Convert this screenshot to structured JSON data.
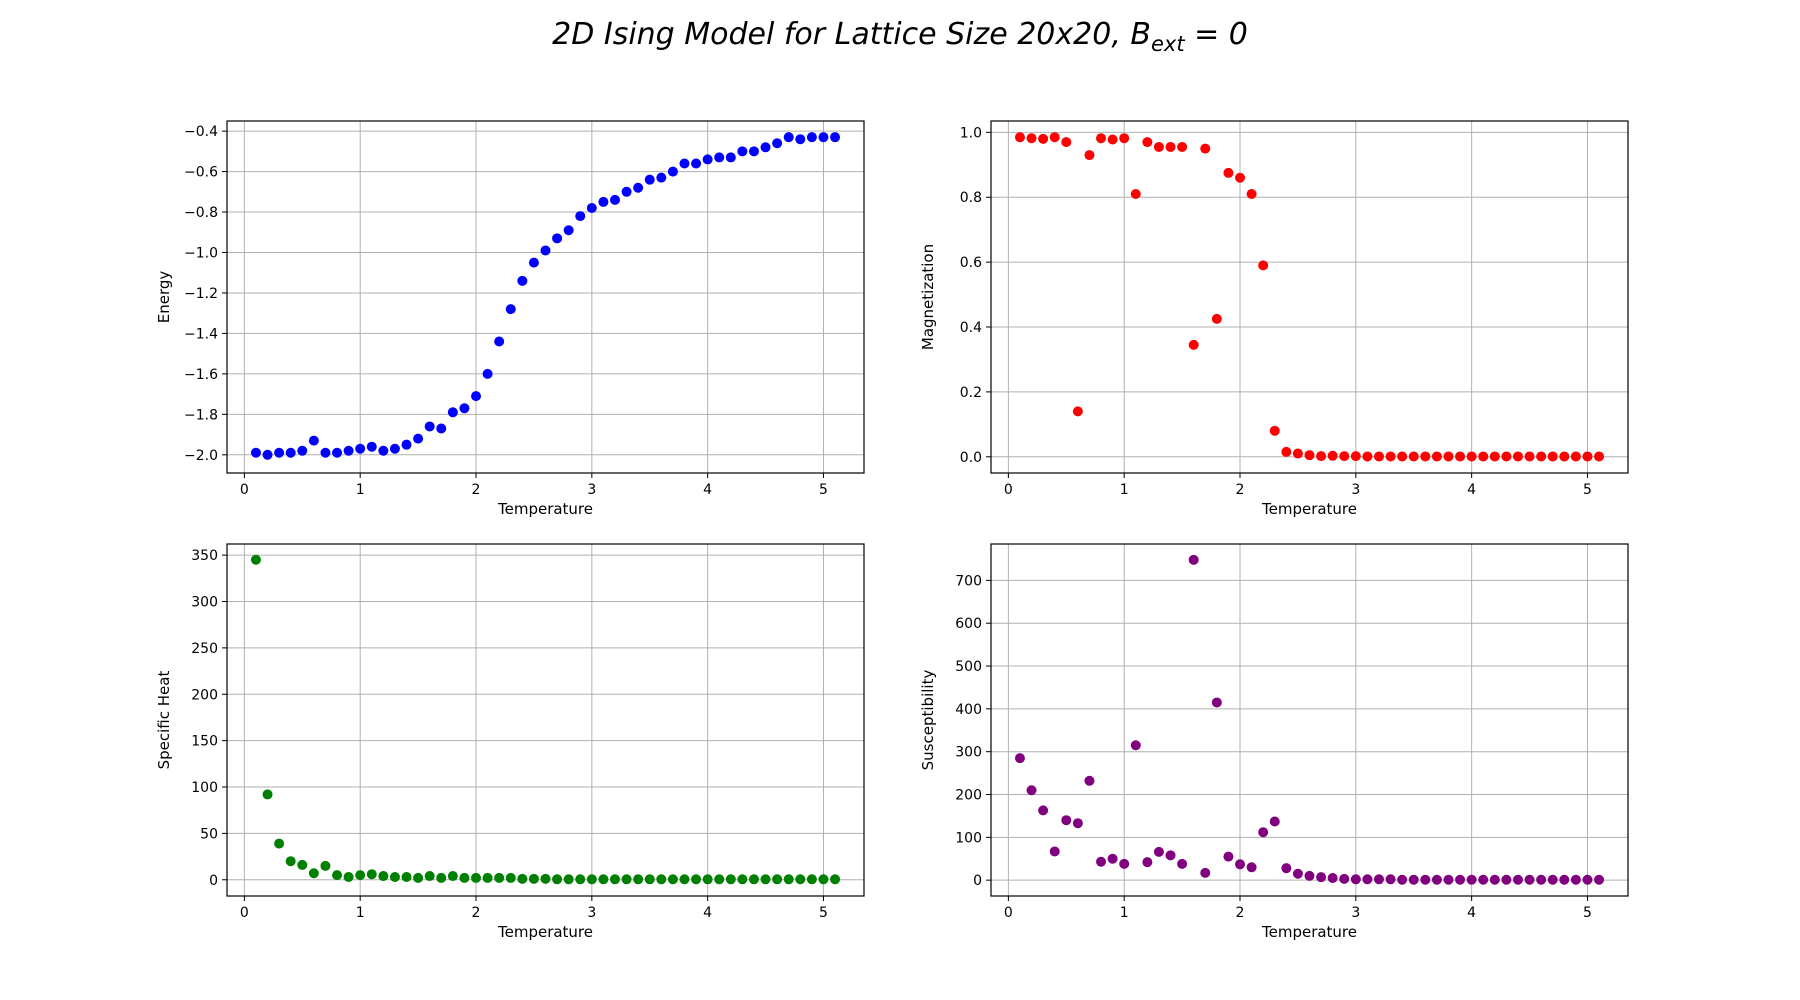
{
  "figure": {
    "title": "2D Ising Model for Lattice Size 20x20, ",
    "title_b": "B",
    "title_sub": "ext",
    "title_tail": "  =  0"
  },
  "chart_data": [
    {
      "id": "energy",
      "type": "scatter",
      "xlabel": "Temperature",
      "ylabel": "Energy",
      "xlim": [
        -0.15,
        5.35
      ],
      "ylim": [
        -2.09,
        -0.35
      ],
      "xticks": [
        0,
        1,
        2,
        3,
        4,
        5
      ],
      "xtick_labels": [
        "0",
        "1",
        "2",
        "3",
        "4",
        "5"
      ],
      "yticks": [
        -2.0,
        -1.8,
        -1.6,
        -1.4,
        -1.2,
        -1.0,
        -0.8,
        -0.6,
        -0.4
      ],
      "ytick_labels": [
        "−2.0",
        "−1.8",
        "−1.6",
        "−1.4",
        "−1.2",
        "−1.0",
        "−0.8",
        "−0.6",
        "−0.4"
      ],
      "grid": true,
      "color": "#0000ff",
      "x": [
        0.1,
        0.2,
        0.3,
        0.4,
        0.5,
        0.6,
        0.7,
        0.8,
        0.9,
        1.0,
        1.1,
        1.2,
        1.3,
        1.4,
        1.5,
        1.6,
        1.7,
        1.8,
        1.9,
        2.0,
        2.1,
        2.2,
        2.3,
        2.4,
        2.5,
        2.6,
        2.7,
        2.8,
        2.9,
        3.0,
        3.1,
        3.2,
        3.3,
        3.4,
        3.5,
        3.6,
        3.7,
        3.8,
        3.9,
        4.0,
        4.1,
        4.2,
        4.3,
        4.4,
        4.5,
        4.6,
        4.7,
        4.8,
        4.9,
        5.0,
        5.1
      ],
      "y": [
        -1.99,
        -2.0,
        -1.99,
        -1.99,
        -1.98,
        -1.93,
        -1.99,
        -1.99,
        -1.98,
        -1.97,
        -1.96,
        -1.98,
        -1.97,
        -1.95,
        -1.92,
        -1.86,
        -1.87,
        -1.79,
        -1.77,
        -1.71,
        -1.6,
        -1.44,
        -1.28,
        -1.14,
        -1.05,
        -0.99,
        -0.93,
        -0.89,
        -0.82,
        -0.78,
        -0.75,
        -0.74,
        -0.7,
        -0.68,
        -0.64,
        -0.63,
        -0.6,
        -0.56,
        -0.56,
        -0.54,
        -0.53,
        -0.53,
        -0.5,
        -0.5,
        -0.48,
        -0.46,
        -0.43,
        -0.44,
        -0.43,
        -0.43,
        -0.43
      ]
    },
    {
      "id": "magnetization",
      "type": "scatter",
      "xlabel": "Temperature",
      "ylabel": "Magnetization",
      "xlim": [
        -0.15,
        5.35
      ],
      "ylim": [
        -0.05,
        1.035
      ],
      "xticks": [
        0,
        1,
        2,
        3,
        4,
        5
      ],
      "xtick_labels": [
        "0",
        "1",
        "2",
        "3",
        "4",
        "5"
      ],
      "yticks": [
        0.0,
        0.2,
        0.4,
        0.6,
        0.8,
        1.0
      ],
      "ytick_labels": [
        "0.0",
        "0.2",
        "0.4",
        "0.6",
        "0.8",
        "1.0"
      ],
      "grid": true,
      "color": "#ff0000",
      "x": [
        0.1,
        0.2,
        0.3,
        0.4,
        0.5,
        0.6,
        0.7,
        0.8,
        0.9,
        1.0,
        1.1,
        1.2,
        1.3,
        1.4,
        1.5,
        1.6,
        1.7,
        1.8,
        1.9,
        2.0,
        2.1,
        2.2,
        2.3,
        2.4,
        2.5,
        2.6,
        2.7,
        2.8,
        2.9,
        3.0,
        3.1,
        3.2,
        3.3,
        3.4,
        3.5,
        3.6,
        3.7,
        3.8,
        3.9,
        4.0,
        4.1,
        4.2,
        4.3,
        4.4,
        4.5,
        4.6,
        4.7,
        4.8,
        4.9,
        5.0,
        5.1
      ],
      "y": [
        0.985,
        0.982,
        0.98,
        0.985,
        0.97,
        0.14,
        0.93,
        0.982,
        0.978,
        0.982,
        0.81,
        0.97,
        0.955,
        0.955,
        0.955,
        0.345,
        0.95,
        0.425,
        0.875,
        0.86,
        0.81,
        0.59,
        0.08,
        0.015,
        0.01,
        0.005,
        0.002,
        0.003,
        0.002,
        0.002,
        0.001,
        0.001,
        0.001,
        0.001,
        0.001,
        0.001,
        0.001,
        0.001,
        0.001,
        0.001,
        0.001,
        0.001,
        0.001,
        0.001,
        0.001,
        0.001,
        0.001,
        0.001,
        0.001,
        0.001,
        0.001
      ]
    },
    {
      "id": "specific-heat",
      "type": "scatter",
      "xlabel": "Temperature",
      "ylabel": "Specific Heat",
      "xlim": [
        -0.15,
        5.35
      ],
      "ylim": [
        -17.5,
        362
      ],
      "xticks": [
        0,
        1,
        2,
        3,
        4,
        5
      ],
      "xtick_labels": [
        "0",
        "1",
        "2",
        "3",
        "4",
        "5"
      ],
      "yticks": [
        0,
        50,
        100,
        150,
        200,
        250,
        300,
        350
      ],
      "ytick_labels": [
        "0",
        "50",
        "100",
        "150",
        "200",
        "250",
        "300",
        "350"
      ],
      "grid": true,
      "color": "#008000",
      "x": [
        0.1,
        0.2,
        0.3,
        0.4,
        0.5,
        0.6,
        0.7,
        0.8,
        0.9,
        1.0,
        1.1,
        1.2,
        1.3,
        1.4,
        1.5,
        1.6,
        1.7,
        1.8,
        1.9,
        2.0,
        2.1,
        2.2,
        2.3,
        2.4,
        2.5,
        2.6,
        2.7,
        2.8,
        2.9,
        3.0,
        3.1,
        3.2,
        3.3,
        3.4,
        3.5,
        3.6,
        3.7,
        3.8,
        3.9,
        4.0,
        4.1,
        4.2,
        4.3,
        4.4,
        4.5,
        4.6,
        4.7,
        4.8,
        4.9,
        5.0,
        5.1
      ],
      "y": [
        345,
        92,
        39,
        20,
        16,
        7,
        15,
        5,
        3,
        5,
        6,
        4,
        3,
        3,
        2,
        4,
        2,
        4,
        2,
        2,
        2,
        2,
        2,
        1,
        1,
        1,
        0.5,
        0.5,
        0.5,
        0.5,
        0.5,
        0.5,
        0.5,
        0.5,
        0.5,
        0.5,
        0.5,
        0.5,
        0.5,
        0.5,
        0.5,
        0.5,
        0.5,
        0.5,
        0.5,
        0.5,
        0.5,
        0.5,
        0.5,
        0.5,
        0.5
      ]
    },
    {
      "id": "susceptibility",
      "type": "scatter",
      "xlabel": "Temperature",
      "ylabel": "Susceptibility",
      "xlim": [
        -0.15,
        5.35
      ],
      "ylim": [
        -37,
        785
      ],
      "xticks": [
        0,
        1,
        2,
        3,
        4,
        5
      ],
      "xtick_labels": [
        "0",
        "1",
        "2",
        "3",
        "4",
        "5"
      ],
      "yticks": [
        0,
        100,
        200,
        300,
        400,
        500,
        600,
        700
      ],
      "ytick_labels": [
        "0",
        "100",
        "200",
        "300",
        "400",
        "500",
        "600",
        "700"
      ],
      "grid": true,
      "color": "#800080",
      "x": [
        0.1,
        0.2,
        0.3,
        0.4,
        0.5,
        0.6,
        0.7,
        0.8,
        0.9,
        1.0,
        1.1,
        1.2,
        1.3,
        1.4,
        1.5,
        1.6,
        1.7,
        1.8,
        1.9,
        2.0,
        2.1,
        2.2,
        2.3,
        2.4,
        2.5,
        2.6,
        2.7,
        2.8,
        2.9,
        3.0,
        3.1,
        3.2,
        3.3,
        3.4,
        3.5,
        3.6,
        3.7,
        3.8,
        3.9,
        4.0,
        4.1,
        4.2,
        4.3,
        4.4,
        4.5,
        4.6,
        4.7,
        4.8,
        4.9,
        5.0,
        5.1
      ],
      "y": [
        285,
        210,
        163,
        67,
        140,
        133,
        232,
        43,
        50,
        38,
        315,
        42,
        66,
        58,
        38,
        748,
        17,
        415,
        55,
        37,
        30,
        112,
        137,
        28,
        15,
        10,
        7,
        5,
        3,
        2,
        2,
        2,
        2,
        1,
        1,
        1,
        1,
        1,
        1,
        1,
        1,
        1,
        1,
        1,
        1,
        1,
        1,
        1,
        1,
        1,
        1
      ]
    }
  ]
}
